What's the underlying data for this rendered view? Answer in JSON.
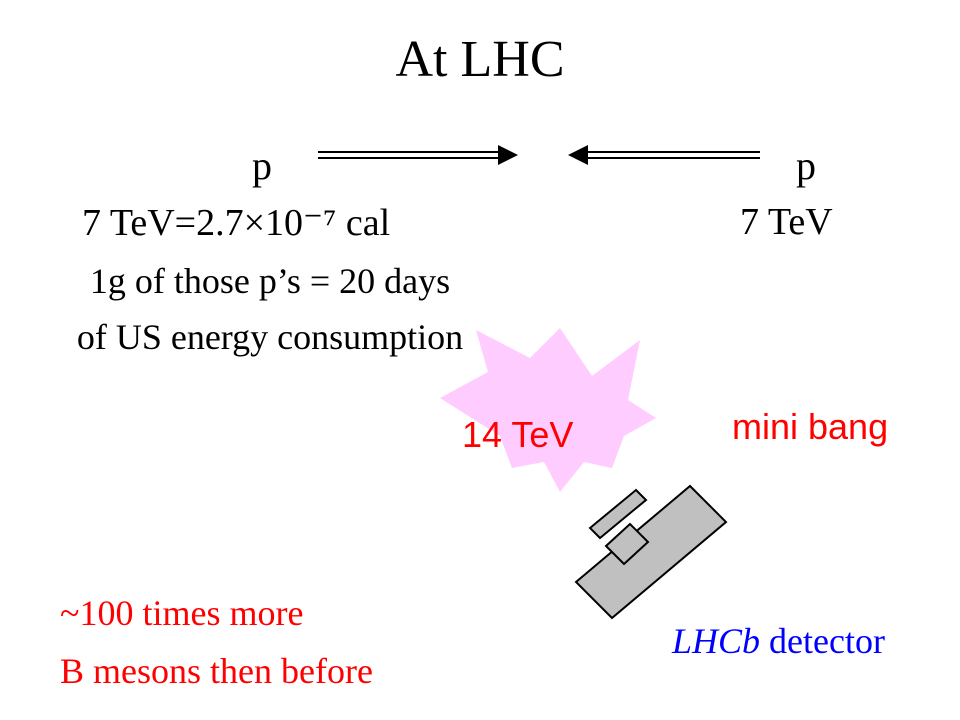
{
  "slide": {
    "title": "At LHC",
    "beam_left": {
      "particle": "p",
      "energy": "7 TeV=2.7×10⁻⁷ cal"
    },
    "beam_right": {
      "particle": "p",
      "energy": "7 TeV"
    },
    "fact": {
      "line1": "1g of those p’s = 20 days",
      "line2": "of US energy consumption"
    },
    "collision": {
      "energy": "14 TeV",
      "label": "mini bang"
    },
    "bmesons": {
      "line1": "~100 times more",
      "line2": "B mesons then before"
    },
    "detector": {
      "name": "LHCb",
      "word": " detector"
    },
    "colors": {
      "emphasis_red": "#ff0000",
      "detector_blue": "#0000ff",
      "burst_pink": "#ffccff",
      "detector_gray": "#c0c0c0"
    }
  }
}
